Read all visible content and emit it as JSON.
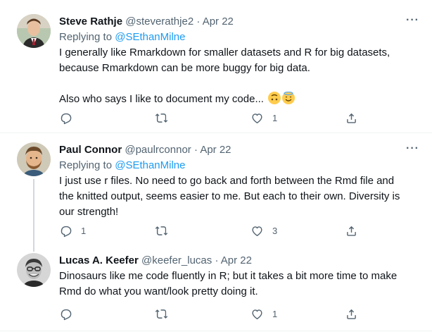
{
  "tweets": [
    {
      "name": "Steve Rathje",
      "handle": "@steverathje2",
      "sep": "·",
      "date": "Apr 22",
      "more": "···",
      "replying_prefix": "Replying to ",
      "replying_to": "@SEthanMilne",
      "line1": "I generally like Rmarkdown for smaller datasets and R for big datasets,",
      "line2": "because Rmarkdown can be more buggy for big data.",
      "line3": "Also who says I like to document my code...",
      "emoji": [
        "upside-down-face",
        "smiling-face-with-halo"
      ],
      "reply_count": "",
      "retweet_count": "",
      "like_count": "1"
    },
    {
      "name": "Paul Connor",
      "handle": "@paulrconnor",
      "sep": "·",
      "date": "Apr 22",
      "more": "···",
      "replying_prefix": "Replying to ",
      "replying_to": "@SEthanMilne",
      "line1": "I just use r files. No need to go back and forth between the Rmd file and",
      "line2": "the knitted output, seems easier to me. But each to their own. Diversity is",
      "line3": "our strength!",
      "reply_count": "1",
      "retweet_count": "",
      "like_count": "3"
    },
    {
      "name": "Lucas A. Keefer",
      "handle": "@keefer_lucas",
      "sep": "·",
      "date": "Apr 22",
      "line1": "Dinosaurs like me code fluently in R; but it takes a bit more time to make",
      "line2": "Rmd do what you want/look pretty doing it.",
      "reply_count": "",
      "retweet_count": "",
      "like_count": "1"
    }
  ],
  "colors": {
    "text": "#0f1419",
    "secondary": "#536471",
    "link": "#1d9bf0",
    "divider": "#eff3f4",
    "thread_line": "#cfd9de"
  }
}
